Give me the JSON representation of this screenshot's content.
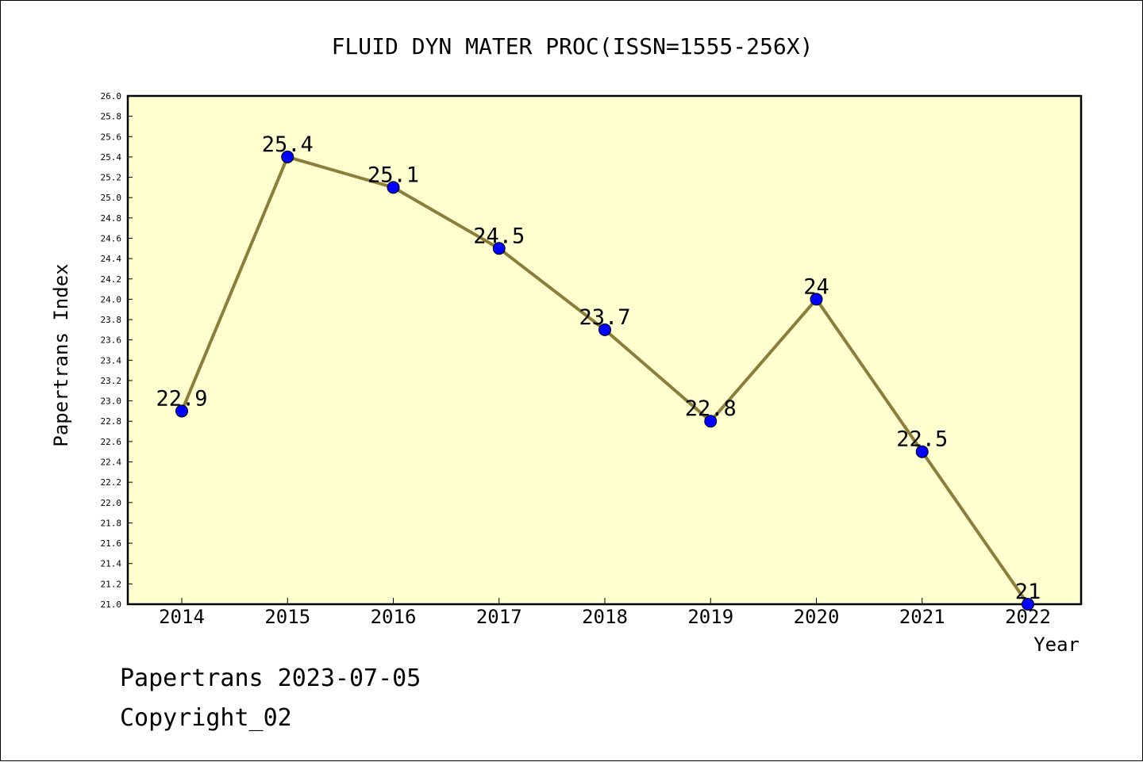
{
  "chart_data": {
    "type": "line",
    "title": "FLUID DYN MATER PROC(ISSN=1555-256X)",
    "xlabel": "Year",
    "ylabel": "Papertrans Index",
    "categories": [
      "2014",
      "2015",
      "2016",
      "2017",
      "2018",
      "2019",
      "2020",
      "2021",
      "2022"
    ],
    "values": [
      22.9,
      25.4,
      25.1,
      24.5,
      23.7,
      22.8,
      24.0,
      22.5,
      21.0
    ],
    "data_labels": [
      "22.9",
      "25.4",
      "25.1",
      "24.5",
      "23.7",
      "22.8",
      "24",
      "22.5",
      "21"
    ],
    "ylim": [
      21.0,
      26.0
    ],
    "ytick_labels": [
      "21.0",
      "21.2",
      "21.4",
      "21.6",
      "21.8",
      "22.0",
      "22.2",
      "22.4",
      "22.6",
      "22.8",
      "23.0",
      "23.2",
      "23.4",
      "23.6",
      "23.8",
      "24.0",
      "24.2",
      "24.4",
      "24.6",
      "24.8",
      "25.0",
      "25.2",
      "25.4",
      "25.6",
      "25.8",
      "26.0"
    ],
    "grid": false,
    "colors": {
      "plot_background": "#ffffd0",
      "line": "#8b7d3a",
      "marker": "#0000ff"
    }
  },
  "footer": {
    "line1": "Papertrans 2023-07-05",
    "line2": "Copyright_02"
  }
}
